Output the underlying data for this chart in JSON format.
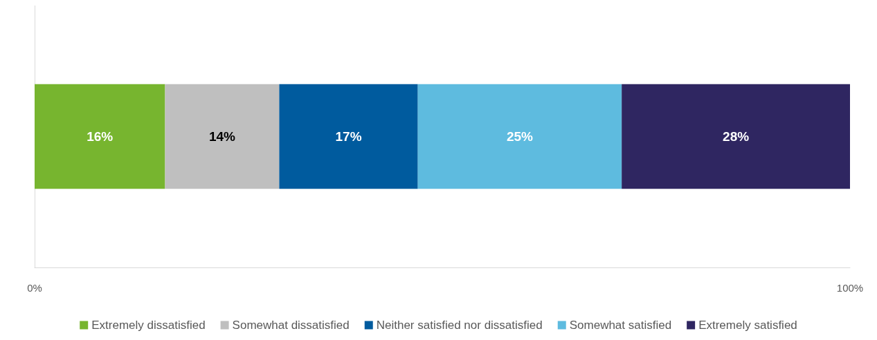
{
  "chart_data": {
    "type": "bar",
    "orientation": "horizontal",
    "stacked": true,
    "categories": [
      null
    ],
    "series": [
      {
        "name": "Extremely dissatisfied",
        "color": "#77b52f",
        "values": [
          16
        ],
        "value_labels": [
          "16%"
        ]
      },
      {
        "name": "Somewhat dissatisfied",
        "color": "#bfbfbf",
        "values": [
          14
        ],
        "value_labels": [
          "14%"
        ]
      },
      {
        "name": "Neither satisfied nor dissatisfied",
        "color": "#005b9e",
        "values": [
          17
        ],
        "value_labels": [
          "17%"
        ]
      },
      {
        "name": "Somewhat satisfied",
        "color": "#5ebbdf",
        "values": [
          25
        ],
        "value_labels": [
          "25%"
        ]
      },
      {
        "name": "Extremely satisfied",
        "color": "#2f2661",
        "values": [
          28
        ],
        "value_labels": [
          "28%"
        ]
      }
    ],
    "xlim": [
      0,
      100
    ],
    "xticks": [
      {
        "value": 0,
        "label": "0%"
      },
      {
        "value": 100,
        "label": "100%"
      }
    ],
    "grid": false,
    "legend": "bottom"
  }
}
